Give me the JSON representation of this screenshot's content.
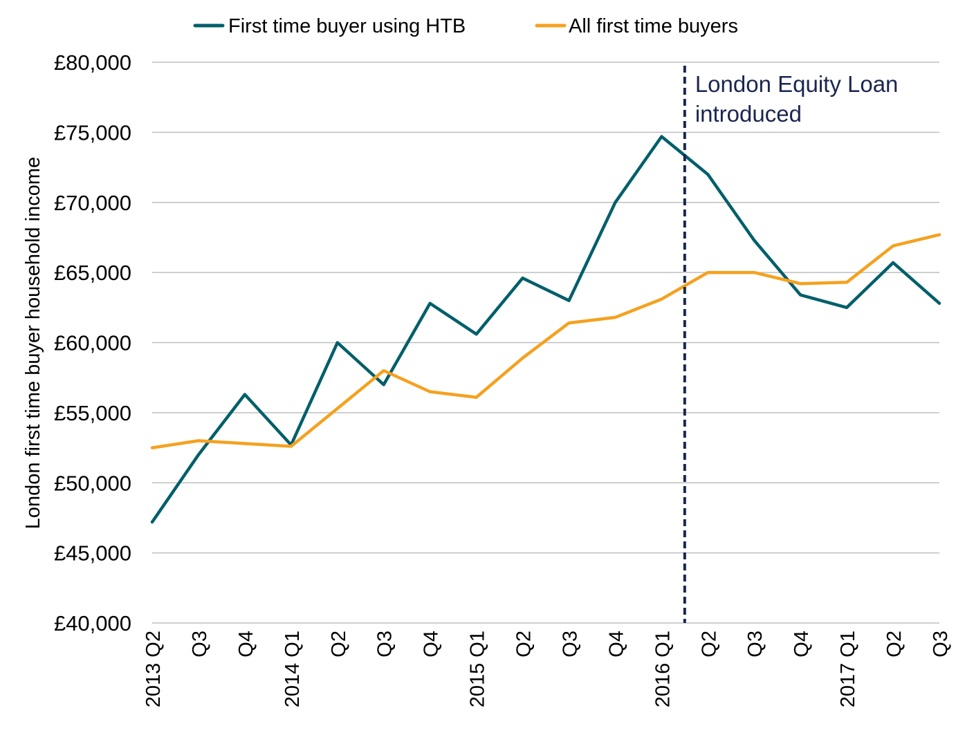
{
  "chart_data": {
    "type": "line",
    "ylabel": "London first time buyer household income",
    "ylim": [
      40000,
      80000
    ],
    "yticks": [
      40000,
      45000,
      50000,
      55000,
      60000,
      65000,
      70000,
      75000,
      80000
    ],
    "ytick_labels": [
      "£40,000",
      "£45,000",
      "£50,000",
      "£55,000",
      "£60,000",
      "£65,000",
      "£70,000",
      "£75,000",
      "£80,000"
    ],
    "categories": [
      "2013 Q2",
      "Q3",
      "Q4",
      "2014 Q1",
      "Q2",
      "Q3",
      "Q4",
      "2015 Q1",
      "Q2",
      "Q3",
      "Q4",
      "2016 Q1",
      "Q2",
      "Q3",
      "Q4",
      "2017 Q1",
      "Q2",
      "Q3"
    ],
    "grid": true,
    "legend_position": "top",
    "series": [
      {
        "name": "First time buyer using HTB",
        "color": "#005f6a",
        "values": [
          47200,
          52000,
          56300,
          52700,
          60000,
          57000,
          62800,
          60600,
          64600,
          63000,
          70000,
          74700,
          72000,
          67300,
          63400,
          62500,
          65700,
          62800
        ]
      },
      {
        "name": "All first time buyers",
        "color": "#f5a11e",
        "values": [
          52500,
          53000,
          52800,
          52600,
          55300,
          58000,
          56500,
          56100,
          58900,
          61400,
          61800,
          63100,
          65000,
          65000,
          64200,
          64300,
          66900,
          67700
        ]
      }
    ],
    "annotations": [
      {
        "text_lines": [
          "London Equity Loan",
          "introduced"
        ],
        "x_category_position": 11.5,
        "line_style": "dashed",
        "color": "#1a2650"
      }
    ]
  }
}
